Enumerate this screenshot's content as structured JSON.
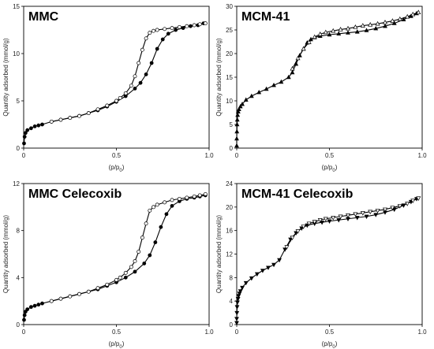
{
  "chart_data": [
    {
      "type": "line",
      "title": "MMC",
      "xlabel": "(p/p",
      "xlabel_sub": "0",
      "xlabel_close": ")",
      "ylabel": "Quantity adsorbed (mmol/g)",
      "xlim": [
        0,
        1.0
      ],
      "ylim": [
        0,
        15
      ],
      "xticks": [
        "0",
        "0.5",
        "1.0"
      ],
      "xtick_values": [
        0,
        0.5,
        1.0
      ],
      "yticks": [
        "0",
        "5",
        "10",
        "15"
      ],
      "ytick_values": [
        0,
        5,
        10,
        15
      ],
      "marker": "circle",
      "series": [
        {
          "kind": "adsorption",
          "filled": true,
          "x": [
            0.002,
            0.005,
            0.01,
            0.02,
            0.04,
            0.06,
            0.08,
            0.1,
            0.15,
            0.2,
            0.25,
            0.3,
            0.35,
            0.4,
            0.45,
            0.5,
            0.55,
            0.6,
            0.63,
            0.66,
            0.69,
            0.72,
            0.75,
            0.78,
            0.82,
            0.86,
            0.9,
            0.94,
            0.97
          ],
          "y": [
            0.5,
            1.2,
            1.6,
            1.9,
            2.1,
            2.3,
            2.4,
            2.5,
            2.8,
            3.0,
            3.2,
            3.4,
            3.7,
            4.0,
            4.4,
            4.9,
            5.5,
            6.3,
            6.9,
            7.8,
            9.0,
            10.5,
            11.5,
            12.1,
            12.5,
            12.7,
            12.9,
            13.0,
            13.2
          ]
        },
        {
          "kind": "desorption",
          "filled": false,
          "x": [
            0.98,
            0.95,
            0.92,
            0.88,
            0.84,
            0.8,
            0.76,
            0.72,
            0.7,
            0.68,
            0.66,
            0.64,
            0.62,
            0.6,
            0.58,
            0.55,
            0.52,
            0.5,
            0.45,
            0.4,
            0.35,
            0.3,
            0.25,
            0.2,
            0.15
          ],
          "y": [
            13.2,
            13.1,
            13.0,
            12.9,
            12.8,
            12.7,
            12.6,
            12.5,
            12.4,
            12.2,
            11.6,
            10.4,
            9.0,
            7.6,
            6.6,
            5.8,
            5.3,
            5.0,
            4.5,
            4.1,
            3.7,
            3.4,
            3.2,
            3.0,
            2.8
          ]
        }
      ]
    },
    {
      "type": "line",
      "title": "MCM-41",
      "xlabel": "(p/p",
      "xlabel_sub": "0",
      "xlabel_close": ")",
      "ylabel": "Quantity adsorbed (mmol/g)",
      "xlim": [
        0,
        1.0
      ],
      "ylim": [
        0,
        30
      ],
      "xticks": [
        "0",
        "0.5",
        "1.0"
      ],
      "xtick_values": [
        0,
        0.5,
        1.0
      ],
      "yticks": [
        "0",
        "5",
        "10",
        "15",
        "20",
        "25",
        "30"
      ],
      "ytick_values": [
        0,
        5,
        10,
        15,
        20,
        25,
        30
      ],
      "marker": "triangle",
      "series": [
        {
          "kind": "adsorption",
          "filled": true,
          "x": [
            0.0,
            0.0,
            0.001,
            0.002,
            0.003,
            0.005,
            0.008,
            0.012,
            0.02,
            0.03,
            0.05,
            0.08,
            0.12,
            0.16,
            0.2,
            0.24,
            0.28,
            0.3,
            0.32,
            0.34,
            0.36,
            0.38,
            0.4,
            0.42,
            0.45,
            0.5,
            0.55,
            0.6,
            0.65,
            0.7,
            0.75,
            0.8,
            0.85,
            0.9,
            0.94,
            0.97
          ],
          "y": [
            0.5,
            2.0,
            3.5,
            5.0,
            6.0,
            7.0,
            7.7,
            8.2,
            8.8,
            9.3,
            10.2,
            11.0,
            11.8,
            12.5,
            13.3,
            14.0,
            15.0,
            16.0,
            17.8,
            19.6,
            21.0,
            22.3,
            23.0,
            23.4,
            23.7,
            24.0,
            24.2,
            24.4,
            24.6,
            24.9,
            25.3,
            25.8,
            26.4,
            27.2,
            27.9,
            28.5
          ]
        },
        {
          "kind": "desorption",
          "filled": false,
          "x": [
            0.98,
            0.95,
            0.92,
            0.88,
            0.84,
            0.8,
            0.76,
            0.72,
            0.68,
            0.64,
            0.6,
            0.56,
            0.52,
            0.48,
            0.45,
            0.42,
            0.39,
            0.36,
            0.33,
            0.3
          ],
          "y": [
            28.7,
            28.3,
            27.8,
            27.3,
            26.9,
            26.6,
            26.3,
            26.1,
            25.9,
            25.6,
            25.3,
            25.1,
            24.8,
            24.5,
            24.1,
            23.5,
            22.4,
            21.0,
            19.0,
            16.8
          ]
        }
      ]
    },
    {
      "type": "line",
      "title": "MMC Celecoxib",
      "xlabel": "(p/p",
      "xlabel_sub": "0",
      "xlabel_close": ")",
      "ylabel": "Quantity adsorbed (mmol/g)",
      "xlim": [
        0,
        1.0
      ],
      "ylim": [
        0,
        12
      ],
      "xticks": [
        "0",
        "0.5",
        "1.0"
      ],
      "xtick_values": [
        0,
        0.5,
        1.0
      ],
      "yticks": [
        "0",
        "4",
        "8",
        "12"
      ],
      "ytick_values": [
        0,
        4,
        8,
        12
      ],
      "marker": "circle",
      "series": [
        {
          "kind": "adsorption",
          "filled": true,
          "x": [
            0.002,
            0.005,
            0.01,
            0.02,
            0.04,
            0.06,
            0.08,
            0.1,
            0.15,
            0.2,
            0.25,
            0.3,
            0.35,
            0.4,
            0.45,
            0.5,
            0.55,
            0.6,
            0.65,
            0.68,
            0.71,
            0.74,
            0.77,
            0.8,
            0.84,
            0.88,
            0.92,
            0.95,
            0.98
          ],
          "y": [
            0.4,
            0.8,
            1.1,
            1.3,
            1.5,
            1.6,
            1.7,
            1.8,
            2.0,
            2.2,
            2.4,
            2.6,
            2.8,
            3.0,
            3.3,
            3.6,
            4.0,
            4.5,
            5.2,
            5.9,
            7.0,
            8.3,
            9.4,
            10.1,
            10.5,
            10.7,
            10.8,
            10.9,
            11.0
          ]
        },
        {
          "kind": "desorption",
          "filled": false,
          "x": [
            0.98,
            0.95,
            0.92,
            0.88,
            0.84,
            0.8,
            0.76,
            0.72,
            0.7,
            0.68,
            0.66,
            0.64,
            0.62,
            0.6,
            0.58,
            0.55,
            0.52,
            0.5,
            0.45,
            0.4,
            0.35,
            0.3,
            0.25,
            0.2,
            0.15
          ],
          "y": [
            11.1,
            11.0,
            10.9,
            10.8,
            10.7,
            10.6,
            10.4,
            10.2,
            10.0,
            9.7,
            8.6,
            7.4,
            6.2,
            5.4,
            4.9,
            4.4,
            4.0,
            3.8,
            3.4,
            3.1,
            2.8,
            2.6,
            2.4,
            2.2,
            2.0
          ]
        }
      ]
    },
    {
      "type": "line",
      "title": "MCM-41 Celecoxib",
      "xlabel": "(p/p",
      "xlabel_sub": "0",
      "xlabel_close": ")",
      "ylabel": "Quantity adsorbed (mmol/g)",
      "xlim": [
        0,
        1.0
      ],
      "ylim": [
        0,
        24
      ],
      "xticks": [
        "0",
        "0.5",
        "1.0"
      ],
      "xtick_values": [
        0,
        0.5,
        1.0
      ],
      "yticks": [
        "0",
        "4",
        "8",
        "12",
        "16",
        "20",
        "24"
      ],
      "ytick_values": [
        0,
        4,
        8,
        12,
        16,
        20,
        24
      ],
      "marker": "triangle-down",
      "series": [
        {
          "kind": "adsorption",
          "filled": true,
          "x": [
            0.0,
            0.0,
            0.001,
            0.002,
            0.004,
            0.007,
            0.01,
            0.015,
            0.02,
            0.03,
            0.05,
            0.08,
            0.11,
            0.14,
            0.17,
            0.2,
            0.23,
            0.26,
            0.29,
            0.32,
            0.35,
            0.38,
            0.42,
            0.46,
            0.5,
            0.55,
            0.6,
            0.65,
            0.7,
            0.75,
            0.8,
            0.85,
            0.9,
            0.94,
            0.97
          ],
          "y": [
            0.3,
            1.0,
            2.0,
            3.0,
            3.8,
            4.4,
            4.9,
            5.3,
            5.7,
            6.3,
            7.1,
            7.9,
            8.6,
            9.2,
            9.7,
            10.2,
            11.0,
            12.8,
            14.5,
            15.6,
            16.4,
            16.9,
            17.2,
            17.4,
            17.6,
            17.8,
            18.0,
            18.2,
            18.4,
            18.7,
            19.1,
            19.6,
            20.3,
            20.9,
            21.4
          ]
        },
        {
          "kind": "desorption",
          "filled": false,
          "x": [
            0.98,
            0.95,
            0.92,
            0.88,
            0.84,
            0.8,
            0.76,
            0.72,
            0.68,
            0.64,
            0.6,
            0.56,
            0.52,
            0.48,
            0.45,
            0.42,
            0.39,
            0.36,
            0.33,
            0.3,
            0.27
          ],
          "y": [
            21.5,
            21.1,
            20.6,
            20.2,
            19.9,
            19.6,
            19.4,
            19.2,
            19.0,
            18.8,
            18.6,
            18.4,
            18.2,
            18.0,
            17.8,
            17.5,
            17.2,
            16.7,
            15.9,
            14.8,
            13.2
          ]
        }
      ]
    }
  ]
}
